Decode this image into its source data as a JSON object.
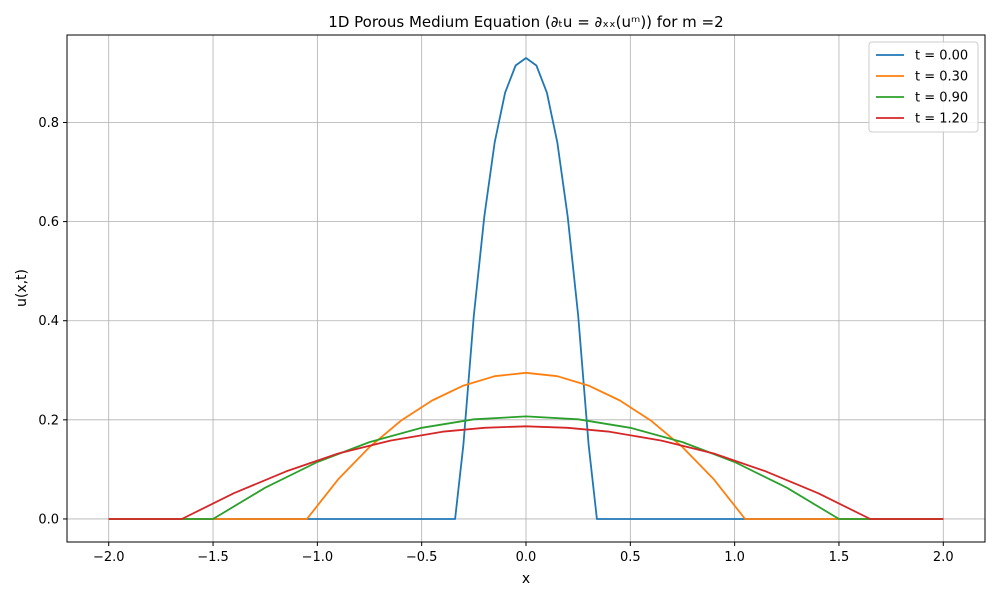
{
  "chart_data": {
    "type": "line",
    "title": "1D Porous Medium Equation (∂ₜu = ∂ₓₓ(uᵐ)) for m =2",
    "xlabel": "x",
    "ylabel": "u(x,t)",
    "xlim": [
      -2.2,
      2.2
    ],
    "ylim": [
      -0.0465,
      0.9765
    ],
    "xticks": [
      -2.0,
      -1.5,
      -1.0,
      -0.5,
      0.0,
      0.5,
      1.0,
      1.5,
      2.0
    ],
    "xtick_labels": [
      "−2.0",
      "−1.5",
      "−1.0",
      "−0.5",
      "0.0",
      "0.5",
      "1.0",
      "1.5",
      "2.0"
    ],
    "yticks": [
      0.0,
      0.2,
      0.4,
      0.6,
      0.8
    ],
    "ytick_labels": [
      "0.0",
      "0.2",
      "0.4",
      "0.6",
      "0.8"
    ],
    "grid": true,
    "legend_position": "top-right",
    "series": [
      {
        "name": "t = 0.00",
        "color": "#1f77b4",
        "x": [
          -2.0,
          -0.34,
          -0.3,
          -0.25,
          -0.2,
          -0.15,
          -0.1,
          -0.05,
          0.0,
          0.05,
          0.1,
          0.15,
          0.2,
          0.25,
          0.3,
          0.34,
          2.0
        ],
        "y": [
          0.0,
          0.0,
          0.15,
          0.41,
          0.61,
          0.76,
          0.86,
          0.915,
          0.93,
          0.915,
          0.86,
          0.76,
          0.61,
          0.41,
          0.15,
          0.0,
          0.0
        ]
      },
      {
        "name": "t = 0.30",
        "color": "#ff7f0e",
        "x": [
          -2.0,
          -1.05,
          -0.9,
          -0.75,
          -0.6,
          -0.45,
          -0.3,
          -0.15,
          0.0,
          0.15,
          0.3,
          0.45,
          0.6,
          0.75,
          0.9,
          1.05,
          2.0
        ],
        "y": [
          0.0,
          0.0,
          0.08,
          0.145,
          0.198,
          0.239,
          0.269,
          0.288,
          0.295,
          0.288,
          0.269,
          0.239,
          0.198,
          0.145,
          0.08,
          0.0,
          0.0
        ]
      },
      {
        "name": "t = 0.90",
        "color": "#2ca02c",
        "x": [
          -2.0,
          -1.5,
          -1.25,
          -1.0,
          -0.75,
          -0.5,
          -0.25,
          0.0,
          0.25,
          0.5,
          0.75,
          1.0,
          1.25,
          1.5,
          2.0
        ],
        "y": [
          0.0,
          0.0,
          0.063,
          0.115,
          0.155,
          0.184,
          0.201,
          0.207,
          0.201,
          0.184,
          0.155,
          0.115,
          0.063,
          0.0,
          0.0
        ]
      },
      {
        "name": "t = 1.20",
        "color": "#d62728",
        "x": [
          -2.0,
          -1.65,
          -1.4,
          -1.15,
          -0.9,
          -0.65,
          -0.4,
          -0.2,
          0.0,
          0.2,
          0.4,
          0.65,
          0.9,
          1.15,
          1.4,
          1.65,
          2.0
        ],
        "y": [
          0.0,
          0.0,
          0.052,
          0.096,
          0.132,
          0.158,
          0.176,
          0.184,
          0.187,
          0.184,
          0.176,
          0.158,
          0.132,
          0.096,
          0.052,
          0.0,
          0.0
        ]
      }
    ]
  }
}
